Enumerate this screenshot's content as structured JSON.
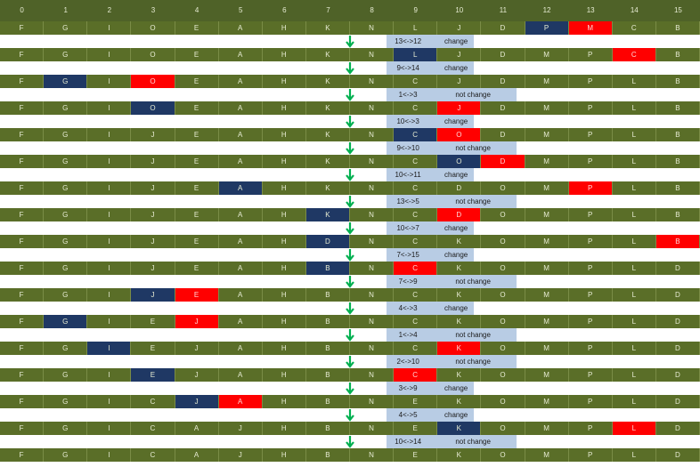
{
  "headers": [
    "0",
    "1",
    "2",
    "3",
    "4",
    "5",
    "6",
    "7",
    "8",
    "9",
    "10",
    "11",
    "12",
    "13",
    "14",
    "15"
  ],
  "rows": [
    {
      "cells": [
        "F",
        "G",
        "I",
        "O",
        "E",
        "A",
        "H",
        "K",
        "N",
        "L",
        "J",
        "D",
        "P",
        "M",
        "C",
        "B"
      ],
      "blue": [
        12
      ],
      "red": [
        13
      ]
    },
    {
      "cells": [
        "F",
        "G",
        "I",
        "O",
        "E",
        "A",
        "H",
        "K",
        "N",
        "L",
        "J",
        "D",
        "M",
        "P",
        "C",
        "B"
      ],
      "blue": [
        9
      ],
      "red": [
        14
      ]
    },
    {
      "cells": [
        "F",
        "G",
        "I",
        "O",
        "E",
        "A",
        "H",
        "K",
        "N",
        "C",
        "J",
        "D",
        "M",
        "P",
        "L",
        "B"
      ],
      "blue": [
        1
      ],
      "red": [
        3
      ]
    },
    {
      "cells": [
        "F",
        "G",
        "I",
        "O",
        "E",
        "A",
        "H",
        "K",
        "N",
        "C",
        "J",
        "D",
        "M",
        "P",
        "L",
        "B"
      ],
      "blue": [
        3
      ],
      "red": [
        10
      ]
    },
    {
      "cells": [
        "F",
        "G",
        "I",
        "J",
        "E",
        "A",
        "H",
        "K",
        "N",
        "C",
        "O",
        "D",
        "M",
        "P",
        "L",
        "B"
      ],
      "blue": [
        9
      ],
      "red": [
        10
      ]
    },
    {
      "cells": [
        "F",
        "G",
        "I",
        "J",
        "E",
        "A",
        "H",
        "K",
        "N",
        "C",
        "O",
        "D",
        "M",
        "P",
        "L",
        "B"
      ],
      "blue": [
        10
      ],
      "red": [
        11
      ]
    },
    {
      "cells": [
        "F",
        "G",
        "I",
        "J",
        "E",
        "A",
        "H",
        "K",
        "N",
        "C",
        "D",
        "O",
        "M",
        "P",
        "L",
        "B"
      ],
      "blue": [
        5
      ],
      "red": [
        13
      ]
    },
    {
      "cells": [
        "F",
        "G",
        "I",
        "J",
        "E",
        "A",
        "H",
        "K",
        "N",
        "C",
        "D",
        "O",
        "M",
        "P",
        "L",
        "B"
      ],
      "blue": [
        7
      ],
      "red": [
        10
      ]
    },
    {
      "cells": [
        "F",
        "G",
        "I",
        "J",
        "E",
        "A",
        "H",
        "D",
        "N",
        "C",
        "K",
        "O",
        "M",
        "P",
        "L",
        "B"
      ],
      "blue": [
        7
      ],
      "red": [
        15
      ]
    },
    {
      "cells": [
        "F",
        "G",
        "I",
        "J",
        "E",
        "A",
        "H",
        "B",
        "N",
        "C",
        "K",
        "O",
        "M",
        "P",
        "L",
        "D"
      ],
      "blue": [
        7
      ],
      "red": [
        9
      ]
    },
    {
      "cells": [
        "F",
        "G",
        "I",
        "J",
        "E",
        "A",
        "H",
        "B",
        "N",
        "C",
        "K",
        "O",
        "M",
        "P",
        "L",
        "D"
      ],
      "blue": [
        3
      ],
      "red": [
        4
      ]
    },
    {
      "cells": [
        "F",
        "G",
        "I",
        "E",
        "J",
        "A",
        "H",
        "B",
        "N",
        "C",
        "K",
        "O",
        "M",
        "P",
        "L",
        "D"
      ],
      "blue": [
        1
      ],
      "red": [
        4
      ]
    },
    {
      "cells": [
        "F",
        "G",
        "I",
        "E",
        "J",
        "A",
        "H",
        "B",
        "N",
        "C",
        "K",
        "O",
        "M",
        "P",
        "L",
        "D"
      ],
      "blue": [
        2
      ],
      "red": [
        10
      ]
    },
    {
      "cells": [
        "F",
        "G",
        "I",
        "E",
        "J",
        "A",
        "H",
        "B",
        "N",
        "C",
        "K",
        "O",
        "M",
        "P",
        "L",
        "D"
      ],
      "blue": [
        3
      ],
      "red": [
        9
      ]
    },
    {
      "cells": [
        "F",
        "G",
        "I",
        "C",
        "J",
        "A",
        "H",
        "B",
        "N",
        "E",
        "K",
        "O",
        "M",
        "P",
        "L",
        "D"
      ],
      "blue": [
        4
      ],
      "red": [
        5
      ]
    },
    {
      "cells": [
        "F",
        "G",
        "I",
        "C",
        "A",
        "J",
        "H",
        "B",
        "N",
        "E",
        "K",
        "O",
        "M",
        "P",
        "L",
        "D"
      ],
      "blue": [
        10
      ],
      "red": [
        14
      ]
    },
    {
      "cells": [
        "F",
        "G",
        "I",
        "C",
        "A",
        "J",
        "H",
        "B",
        "N",
        "E",
        "K",
        "O",
        "M",
        "P",
        "L",
        "D"
      ],
      "blue": [],
      "red": []
    }
  ],
  "swaps": [
    {
      "pair": "13<->12",
      "result": "change"
    },
    {
      "pair": "9<->14",
      "result": "change"
    },
    {
      "pair": "1<->3",
      "result": "not change"
    },
    {
      "pair": "10<->3",
      "result": "change"
    },
    {
      "pair": "9<->10",
      "result": "not change"
    },
    {
      "pair": "10<->11",
      "result": "change"
    },
    {
      "pair": "13<->5",
      "result": "not change"
    },
    {
      "pair": "10<->7",
      "result": "change"
    },
    {
      "pair": "7<->15",
      "result": "change"
    },
    {
      "pair": "7<->9",
      "result": "not change"
    },
    {
      "pair": "4<->3",
      "result": "change"
    },
    {
      "pair": "1<->4",
      "result": "not change"
    },
    {
      "pair": "2<->10",
      "result": "not change"
    },
    {
      "pair": "3<->9",
      "result": "change"
    },
    {
      "pair": "4<->5",
      "result": "change"
    },
    {
      "pair": "10<->14",
      "result": "not change"
    }
  ],
  "colors": {
    "row": "#5a6e28",
    "header": "#4f6228",
    "blue": "#1f3864",
    "red": "#ff0000",
    "swap": "#b8cce4",
    "arrow": "#00b050"
  },
  "icons": {
    "arrow": "down-arrow-icon"
  }
}
